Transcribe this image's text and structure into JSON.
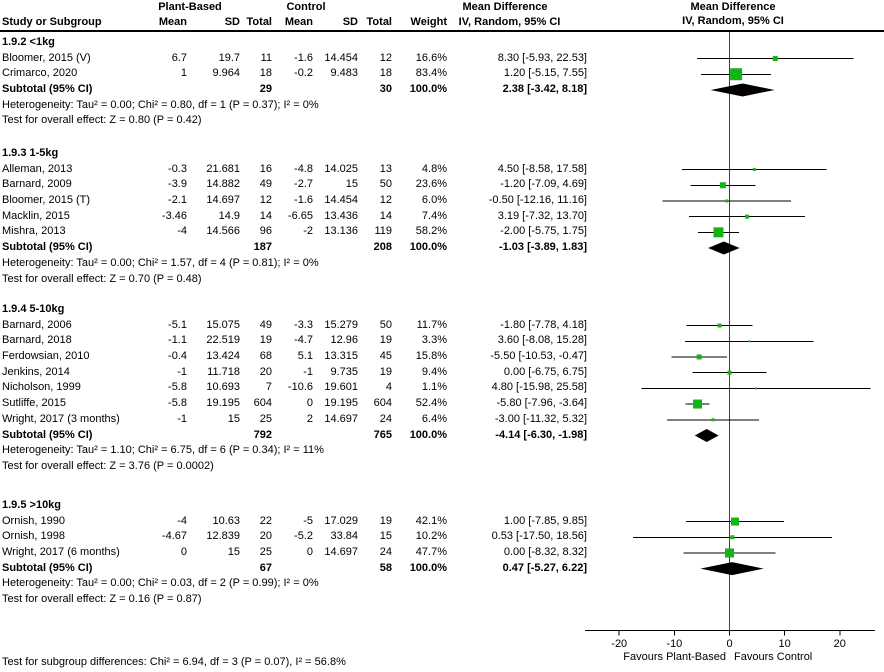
{
  "header": {
    "study_col": "Study or Subgroup",
    "group1": "Plant-Based",
    "group2": "Control",
    "sub_cols": [
      "Mean",
      "SD",
      "Total",
      "Mean",
      "SD",
      "Total",
      "Weight"
    ],
    "effect_title": "Mean Difference",
    "effect_method": "IV, Random, 95% CI",
    "plot_title": "Mean Difference",
    "plot_method": "IV, Random, 95% CI"
  },
  "colors": {
    "marker_green": "#15B415",
    "summary_black": "#000000",
    "zero_line_gray": "#404040"
  },
  "chart_data": {
    "type": "forest",
    "effect_measure": "Mean Difference",
    "model": "IV, Random, 95% CI",
    "axis": {
      "x_min": -26.2,
      "x_max": 26.5,
      "x_ticks": [
        -20,
        -10,
        0,
        10,
        20
      ],
      "favours_left": "Favours Plant-Based",
      "favours_right": "Favours Control"
    },
    "sections": [
      {
        "label": "1.9.2 <1kg",
        "studies": [
          {
            "study": "Bloomer, 2015 (V)",
            "mean_pb": "6.7",
            "sd_pb": "19.7",
            "total_pb": "11",
            "mean_c": "-1.6",
            "sd_c": "14.454",
            "total_c": "12",
            "weight": "16.6%",
            "ci_label": "8.30 [-5.93, 22.53]",
            "est": 8.3,
            "ci_low": -5.93,
            "ci_high": 22.53,
            "weight_pct": 16.6
          },
          {
            "study": "Crimarco, 2020",
            "mean_pb": "1",
            "sd_pb": "9.964",
            "total_pb": "18",
            "mean_c": "-0.2",
            "sd_c": "9.483",
            "total_c": "18",
            "weight": "83.4%",
            "ci_label": "1.20 [-5.15, 7.55]",
            "est": 1.2,
            "ci_low": -5.15,
            "ci_high": 7.55,
            "weight_pct": 83.4
          }
        ],
        "subtotal": {
          "label": "Subtotal (95% CI)",
          "total_pb": "29",
          "total_c": "30",
          "weight": "100.0%",
          "ci_label": "2.38 [-3.42, 8.18]",
          "est": 2.38,
          "ci_low": -3.42,
          "ci_high": 8.18
        },
        "heterogeneity": "Heterogeneity: Tau² = 0.00; Chi² = 0.80, df = 1 (P = 0.37); I² = 0%",
        "overall_test": "Test for overall effect: Z = 0.80 (P = 0.42)"
      },
      {
        "label": "1.9.3 1-5kg",
        "studies": [
          {
            "study": "Alleman, 2013",
            "mean_pb": "-0.3",
            "sd_pb": "21.681",
            "total_pb": "16",
            "mean_c": "-4.8",
            "sd_c": "14.025",
            "total_c": "13",
            "weight": "4.8%",
            "ci_label": "4.50 [-8.58, 17.58]",
            "est": 4.5,
            "ci_low": -8.58,
            "ci_high": 17.58,
            "weight_pct": 4.8
          },
          {
            "study": "Barnard, 2009",
            "mean_pb": "-3.9",
            "sd_pb": "14.882",
            "total_pb": "49",
            "mean_c": "-2.7",
            "sd_c": "15",
            "total_c": "50",
            "weight": "23.6%",
            "ci_label": "-1.20 [-7.09, 4.69]",
            "est": -1.2,
            "ci_low": -7.09,
            "ci_high": 4.69,
            "weight_pct": 23.6
          },
          {
            "study": "Bloomer, 2015 (T)",
            "mean_pb": "-2.1",
            "sd_pb": "14.697",
            "total_pb": "12",
            "mean_c": "-1.6",
            "sd_c": "14.454",
            "total_c": "12",
            "weight": "6.0%",
            "ci_label": "-0.50 [-12.16, 11.16]",
            "est": -0.5,
            "ci_low": -12.16,
            "ci_high": 11.16,
            "weight_pct": 6.0
          },
          {
            "study": "Macklin, 2015",
            "mean_pb": "-3.46",
            "sd_pb": "14.9",
            "total_pb": "14",
            "mean_c": "-6.65",
            "sd_c": "13.436",
            "total_c": "14",
            "weight": "7.4%",
            "ci_label": "3.19 [-7.32, 13.70]",
            "est": 3.19,
            "ci_low": -7.32,
            "ci_high": 13.7,
            "weight_pct": 7.4
          },
          {
            "study": "Mishra, 2013",
            "mean_pb": "-4",
            "sd_pb": "14.566",
            "total_pb": "96",
            "mean_c": "-2",
            "sd_c": "13.136",
            "total_c": "119",
            "weight": "58.2%",
            "ci_label": "-2.00 [-5.75, 1.75]",
            "est": -2.0,
            "ci_low": -5.75,
            "ci_high": 1.75,
            "weight_pct": 58.2
          }
        ],
        "subtotal": {
          "label": "Subtotal (95% CI)",
          "total_pb": "187",
          "total_c": "208",
          "weight": "100.0%",
          "ci_label": "-1.03 [-3.89, 1.83]",
          "est": -1.03,
          "ci_low": -3.89,
          "ci_high": 1.83
        },
        "heterogeneity": "Heterogeneity: Tau² = 0.00; Chi² = 1.57, df = 4 (P = 0.81); I² = 0%",
        "overall_test": "Test for overall effect: Z = 0.70 (P = 0.48)"
      },
      {
        "label": "1.9.4 5-10kg",
        "studies": [
          {
            "study": "Barnard, 2006",
            "mean_pb": "-5.1",
            "sd_pb": "15.075",
            "total_pb": "49",
            "mean_c": "-3.3",
            "sd_c": "15.279",
            "total_c": "50",
            "weight": "11.7%",
            "ci_label": "-1.80 [-7.78, 4.18]",
            "est": -1.8,
            "ci_low": -7.78,
            "ci_high": 4.18,
            "weight_pct": 11.7
          },
          {
            "study": "Barnard, 2018",
            "mean_pb": "-1.1",
            "sd_pb": "22.519",
            "total_pb": "19",
            "mean_c": "-4.7",
            "sd_c": "12.96",
            "total_c": "19",
            "weight": "3.3%",
            "ci_label": "3.60 [-8.08, 15.28]",
            "est": 3.6,
            "ci_low": -8.08,
            "ci_high": 15.28,
            "weight_pct": 3.3
          },
          {
            "study": "Ferdowsian, 2010",
            "mean_pb": "-0.4",
            "sd_pb": "13.424",
            "total_pb": "68",
            "mean_c": "5.1",
            "sd_c": "13.315",
            "total_c": "45",
            "weight": "15.8%",
            "ci_label": "-5.50 [-10.53, -0.47]",
            "est": -5.5,
            "ci_low": -10.53,
            "ci_high": -0.47,
            "weight_pct": 15.8
          },
          {
            "study": "Jenkins, 2014",
            "mean_pb": "-1",
            "sd_pb": "11.718",
            "total_pb": "20",
            "mean_c": "-1",
            "sd_c": "9.735",
            "total_c": "19",
            "weight": "9.4%",
            "ci_label": "0.00 [-6.75, 6.75]",
            "est": 0.0,
            "ci_low": -6.75,
            "ci_high": 6.75,
            "weight_pct": 9.4
          },
          {
            "study": "Nicholson, 1999",
            "mean_pb": "-5.8",
            "sd_pb": "10.693",
            "total_pb": "7",
            "mean_c": "-10.6",
            "sd_c": "19.601",
            "total_c": "4",
            "weight": "1.1%",
            "ci_label": "4.80 [-15.98, 25.58]",
            "est": 4.8,
            "ci_low": -15.98,
            "ci_high": 25.58,
            "weight_pct": 1.1
          },
          {
            "study": "Sutliffe, 2015",
            "mean_pb": "-5.8",
            "sd_pb": "19.195",
            "total_pb": "604",
            "mean_c": "0",
            "sd_c": "19.195",
            "total_c": "604",
            "weight": "52.4%",
            "ci_label": "-5.80 [-7.96, -3.64]",
            "est": -5.8,
            "ci_low": -7.96,
            "ci_high": -3.64,
            "weight_pct": 52.4
          },
          {
            "study": "Wright, 2017 (3 months)",
            "mean_pb": "-1",
            "sd_pb": "15",
            "total_pb": "25",
            "mean_c": "2",
            "sd_c": "14.697",
            "total_c": "24",
            "weight": "6.4%",
            "ci_label": "-3.00 [-11.32, 5.32]",
            "est": -3.0,
            "ci_low": -11.32,
            "ci_high": 5.32,
            "weight_pct": 6.4
          }
        ],
        "subtotal": {
          "label": "Subtotal (95% CI)",
          "total_pb": "792",
          "total_c": "765",
          "weight": "100.0%",
          "ci_label": "-4.14 [-6.30, -1.98]",
          "est": -4.14,
          "ci_low": -6.3,
          "ci_high": -1.98
        },
        "heterogeneity": "Heterogeneity: Tau² = 1.10; Chi² = 6.75, df = 6 (P = 0.34); I² = 11%",
        "overall_test": "Test for overall effect: Z = 3.76 (P = 0.0002)"
      },
      {
        "label": "1.9.5 >10kg",
        "studies": [
          {
            "study": "Ornish, 1990",
            "mean_pb": "-4",
            "sd_pb": "10.63",
            "total_pb": "22",
            "mean_c": "-5",
            "sd_c": "17.029",
            "total_c": "19",
            "weight": "42.1%",
            "ci_label": "1.00 [-7.85, 9.85]",
            "est": 1.0,
            "ci_low": -7.85,
            "ci_high": 9.85,
            "weight_pct": 42.1
          },
          {
            "study": "Ornish, 1998",
            "mean_pb": "-4.67",
            "sd_pb": "12.839",
            "total_pb": "20",
            "mean_c": "-5.2",
            "sd_c": "33.84",
            "total_c": "15",
            "weight": "10.2%",
            "ci_label": "0.53 [-17.50, 18.56]",
            "est": 0.53,
            "ci_low": -17.5,
            "ci_high": 18.56,
            "weight_pct": 10.2
          },
          {
            "study": "Wright, 2017 (6 months)",
            "mean_pb": "0",
            "sd_pb": "15",
            "total_pb": "25",
            "mean_c": "0",
            "sd_c": "14.697",
            "total_c": "24",
            "weight": "47.7%",
            "ci_label": "0.00 [-8.32, 8.32]",
            "est": 0.0,
            "ci_low": -8.32,
            "ci_high": 8.32,
            "weight_pct": 47.7
          }
        ],
        "subtotal": {
          "label": "Subtotal (95% CI)",
          "total_pb": "67",
          "total_c": "58",
          "weight": "100.0%",
          "ci_label": "0.47 [-5.27, 6.22]",
          "est": 0.47,
          "ci_low": -5.27,
          "ci_high": 6.22
        },
        "heterogeneity": "Heterogeneity: Tau² = 0.00; Chi² = 0.03, df = 2 (P = 0.99); I² = 0%",
        "overall_test": "Test for overall effect: Z = 0.16 (P = 0.87)"
      }
    ]
  },
  "footer": {
    "subgroup_test": "Test for subgroup differences: Chi² = 6.94, df = 3 (P = 0.07), I² = 56.8%"
  }
}
